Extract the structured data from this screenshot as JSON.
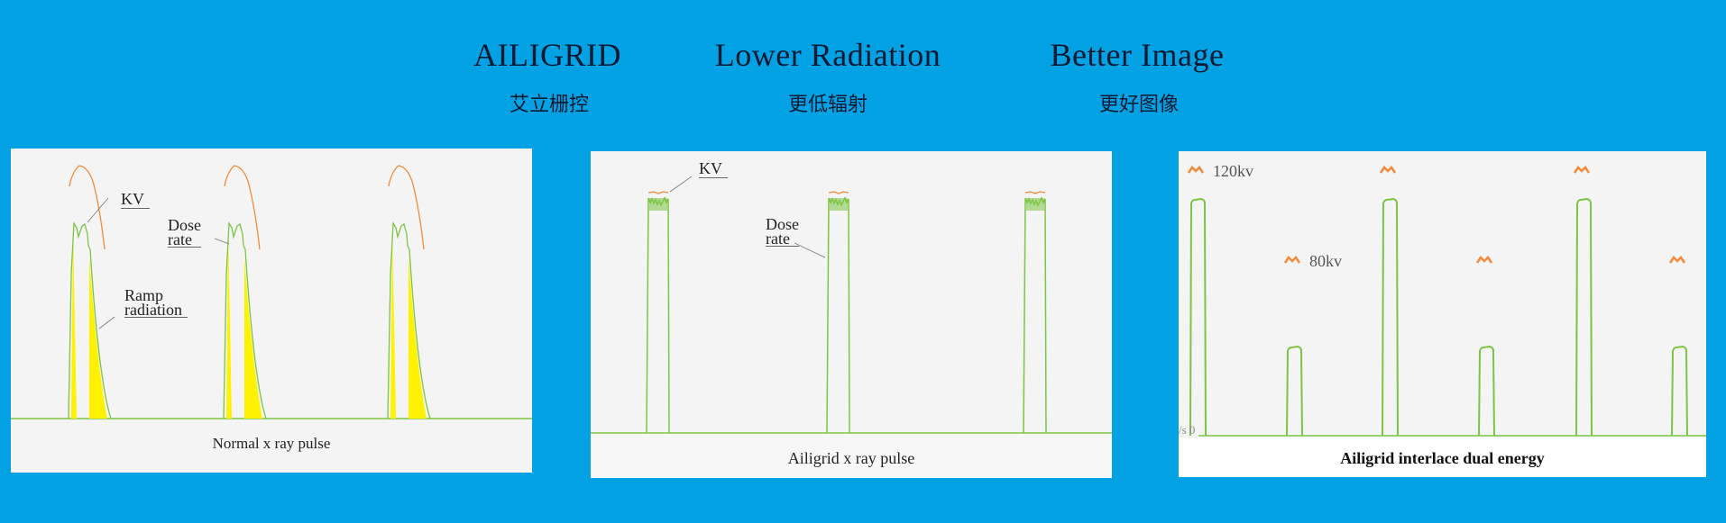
{
  "header": {
    "items": [
      {
        "en": "AILIGRID",
        "zh": "艾立栅控"
      },
      {
        "en": "Lower Radiation",
        "zh": "更低辐射"
      },
      {
        "en": "Better Image",
        "zh": "更好图像"
      }
    ]
  },
  "panels": {
    "normal": {
      "caption": "Normal x ray pulse",
      "kv_label": "KV",
      "dose_label_1": "Dose",
      "dose_label_2": "rate",
      "ramp_label_1": "Ramp",
      "ramp_label_2": "radiation"
    },
    "ailigrid": {
      "caption": "Ailigrid x ray pulse",
      "kv_label": "KV",
      "dose_label_1": "Dose",
      "dose_label_2": "rate"
    },
    "dual": {
      "caption": "Ailigrid interlace dual energy",
      "high_label": "120kv",
      "low_label": "80kv",
      "axis_label": "/s 0"
    }
  },
  "colors": {
    "background": "#03a2e5",
    "dose_rate": "#7cc444",
    "kv": "#f08a3a",
    "ramp": "#fff200",
    "panel": "#f4f4f4"
  }
}
